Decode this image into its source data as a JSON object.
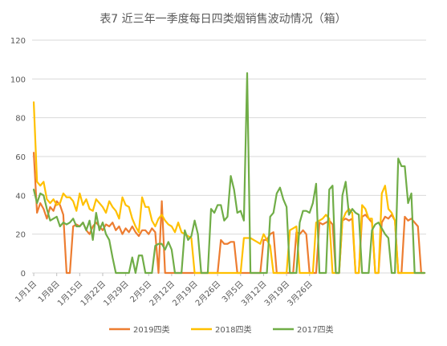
{
  "chart_data": {
    "type": "line",
    "title": "表7  近三年一季度每日四类烟销售波动情况（箱）",
    "ylim": [
      0,
      120
    ],
    "yticks": [
      0,
      20,
      40,
      60,
      80,
      100,
      120
    ],
    "grid": true,
    "legend_position": "bottom",
    "xtick_labels": [
      "1月1日",
      "1月8日",
      "1月15日",
      "1月22日",
      "1月29日",
      "2月5日",
      "2月12日",
      "2月19日",
      "2月26日",
      "3月5日",
      "3月12日",
      "3月19日",
      "3月26日"
    ],
    "x_start": "1月1日",
    "series": [
      {
        "name": "2019四类",
        "color": "#ED7D31",
        "values": [
          62,
          31,
          36,
          33,
          28,
          34,
          32,
          37,
          35,
          30,
          0,
          0,
          24,
          25,
          24,
          26,
          22,
          20,
          24,
          26,
          24,
          22,
          25,
          24,
          26,
          22,
          24,
          20,
          23,
          21,
          24,
          21,
          19,
          22,
          22,
          20,
          23,
          21,
          0,
          37,
          0,
          0,
          0,
          0,
          0,
          0,
          0,
          0,
          0,
          0,
          0,
          0,
          0,
          0,
          0,
          0,
          0,
          17,
          15,
          15,
          16,
          16,
          0,
          0,
          0,
          0,
          0,
          0,
          0,
          0,
          17,
          17,
          20,
          21,
          0,
          0,
          0,
          0,
          0,
          0,
          21,
          20,
          22,
          20,
          0,
          0,
          0,
          26,
          25,
          26,
          27,
          25,
          0,
          0,
          27,
          28,
          27,
          28,
          0,
          0,
          29,
          30,
          28,
          26,
          0,
          0,
          26,
          29,
          28,
          30,
          27,
          0,
          0,
          29,
          27,
          28,
          26,
          24,
          0,
          0
        ]
      },
      {
        "name": "2018四类",
        "color": "#FFC000",
        "values": [
          88,
          47,
          45,
          47,
          38,
          36,
          38,
          35,
          36,
          41,
          39,
          39,
          37,
          32,
          41,
          35,
          38,
          33,
          32,
          38,
          36,
          34,
          31,
          37,
          34,
          32,
          28,
          39,
          35,
          34,
          28,
          24,
          21,
          39,
          34,
          34,
          27,
          24,
          28,
          30,
          27,
          25,
          24,
          21,
          26,
          21,
          20,
          19,
          18,
          0,
          0,
          0,
          0,
          0,
          0,
          0,
          0,
          0,
          0,
          0,
          0,
          0,
          0,
          0,
          18,
          18,
          18,
          17,
          16,
          15,
          20,
          17,
          14,
          0,
          0,
          0,
          0,
          0,
          22,
          23,
          24,
          0,
          0,
          0,
          0,
          0,
          26,
          27,
          28,
          30,
          28,
          0,
          0,
          0,
          27,
          31,
          33,
          31,
          0,
          0,
          35,
          33,
          28,
          28,
          0,
          0,
          41,
          45,
          33,
          31,
          27,
          0,
          0,
          0,
          0,
          0,
          0,
          0,
          0,
          0
        ]
      },
      {
        "name": "2017四类",
        "color": "#70AD47",
        "values": [
          43,
          36,
          41,
          40,
          33,
          27,
          28,
          29,
          24,
          26,
          25,
          26,
          28,
          24,
          24,
          26,
          22,
          27,
          17,
          31,
          22,
          26,
          20,
          17,
          8,
          0,
          0,
          0,
          0,
          0,
          8,
          0,
          9,
          9,
          0,
          0,
          0,
          14,
          15,
          15,
          12,
          16,
          12,
          0,
          0,
          0,
          22,
          17,
          19,
          27,
          20,
          0,
          0,
          0,
          33,
          31,
          35,
          35,
          27,
          29,
          50,
          43,
          31,
          32,
          27,
          103,
          0,
          0,
          0,
          0,
          0,
          0,
          29,
          31,
          41,
          44,
          38,
          34,
          0,
          0,
          0,
          26,
          32,
          32,
          31,
          36,
          46,
          0,
          0,
          0,
          43,
          45,
          0,
          0,
          40,
          47,
          30,
          33,
          31,
          30,
          0,
          0,
          0,
          22,
          25,
          26,
          23,
          20,
          18,
          0,
          0,
          59,
          55,
          55,
          36,
          41,
          0,
          0,
          0,
          0
        ]
      }
    ]
  }
}
